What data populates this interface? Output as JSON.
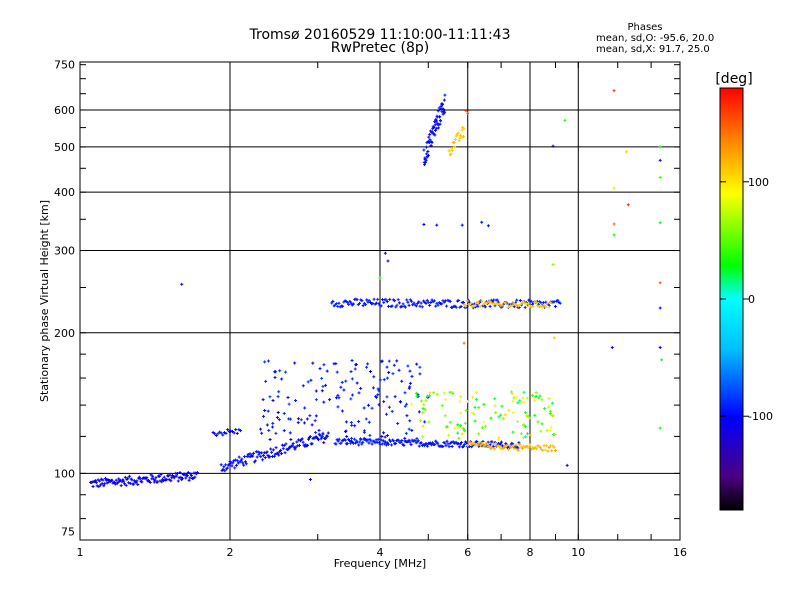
{
  "chart_data": {
    "type": "scatter",
    "title": "Tromsø 20160529 11:10:00-11:11:43",
    "subtitle": "RwPretec (8p)",
    "xlabel": "Frequency [MHz]",
    "ylabel": "Stationary phase Virtual Height [km]",
    "x_scale": "log",
    "y_scale": "log",
    "xlim": [
      1,
      16
    ],
    "ylim": [
      72,
      760
    ],
    "x_ticks": [
      1,
      2,
      4,
      6,
      8,
      10,
      16
    ],
    "x_tick_labels": [
      "1",
      "2",
      "4",
      "6",
      "8",
      "10",
      "16"
    ],
    "y_ticks": [
      75,
      100,
      200,
      300,
      400,
      500,
      600,
      750
    ],
    "y_tick_labels": [
      "75",
      "100",
      "200",
      "300",
      "400",
      "500",
      "600",
      "750"
    ],
    "grid": true,
    "colorbar": {
      "label": "[deg]",
      "range": [
        -180,
        180
      ],
      "ticks": [
        100,
        0,
        -100
      ],
      "tick_labels": [
        "100",
        "0",
        "-100"
      ]
    },
    "legend_title": "Phases",
    "legend_lines": [
      "mean, sd,O: -95.6, 20.0",
      "mean, sd,X: 91.7, 25.0"
    ],
    "traces": [
      {
        "name": "",
        "f_start": 1.05,
        "f_end": 1.72,
        "h_start": 95,
        "h_end": 99,
        "phase": -105,
        "spread": 2.2,
        "count": 130,
        "jitter": 12
      },
      {
        "name": "",
        "f_start": 1.92,
        "f_end": 3.15,
        "h_start": 103,
        "h_end": 120,
        "phase": -100,
        "spread": 2.5,
        "count": 120,
        "jitter": 18
      },
      {
        "name": "",
        "f_start": 1.85,
        "f_end": 2.1,
        "h_start": 122,
        "h_end": 123,
        "phase": -100,
        "spread": 1.5,
        "count": 18,
        "jitter": 15
      },
      {
        "name": "",
        "f_start": 3.25,
        "f_end": 7.6,
        "h_start": 117,
        "h_end": 115,
        "phase": -95,
        "spread": 1.5,
        "count": 180,
        "jitter": 18
      },
      {
        "name": "",
        "f_start": 6.0,
        "f_end": 9.0,
        "h_start": 115,
        "h_end": 113,
        "phase": 115,
        "spread": 1.5,
        "count": 70,
        "jitter": 20
      },
      {
        "name": "",
        "f_start": 3.2,
        "f_end": 9.2,
        "h_start": 232,
        "h_end": 230,
        "phase": -95,
        "spread": 2.0,
        "count": 190,
        "jitter": 22
      },
      {
        "name": "",
        "f_start": 5.9,
        "f_end": 8.8,
        "h_start": 231,
        "h_end": 229,
        "phase": 110,
        "spread": 1.5,
        "count": 55,
        "jitter": 25
      },
      {
        "name": "",
        "f_start": 4.9,
        "f_end": 5.4,
        "h_start": 470,
        "h_end": 620,
        "phase": -100,
        "spread": 5.0,
        "count": 70,
        "jitter": 20
      },
      {
        "name": "",
        "f_start": 5.5,
        "f_end": 5.9,
        "h_start": 490,
        "h_end": 540,
        "phase": 110,
        "spread": 3.0,
        "count": 22,
        "jitter": 20
      }
    ],
    "clouds": [
      {
        "name": "",
        "f_min": 2.3,
        "f_max": 5.0,
        "h_min": 118,
        "h_max": 175,
        "phase": -95,
        "count": 170,
        "jitter": 25
      },
      {
        "name": "",
        "f_min": 4.6,
        "f_max": 9.0,
        "h_min": 118,
        "h_max": 150,
        "phase": 60,
        "count": 120,
        "jitter": 90
      }
    ],
    "points": [
      {
        "f": 1.6,
        "h": 254,
        "phase": -100
      },
      {
        "f": 2.9,
        "h": 97,
        "phase": -100
      },
      {
        "f": 4.0,
        "h": 262,
        "phase": 30
      },
      {
        "f": 4.15,
        "h": 285,
        "phase": -100
      },
      {
        "f": 4.1,
        "h": 296,
        "phase": -100
      },
      {
        "f": 4.9,
        "h": 341,
        "phase": -100
      },
      {
        "f": 5.2,
        "h": 340,
        "phase": -100
      },
      {
        "f": 5.85,
        "h": 340,
        "phase": -100
      },
      {
        "f": 6.4,
        "h": 345,
        "phase": -100
      },
      {
        "f": 6.6,
        "h": 339,
        "phase": -100
      },
      {
        "f": 6.0,
        "h": 590,
        "phase": 150
      },
      {
        "f": 5.95,
        "h": 598,
        "phase": 165
      },
      {
        "f": 9.4,
        "h": 570,
        "phase": 35
      },
      {
        "f": 8.9,
        "h": 502,
        "phase": -130
      },
      {
        "f": 8.9,
        "h": 280,
        "phase": 60
      },
      {
        "f": 8.95,
        "h": 195,
        "phase": 110
      },
      {
        "f": 5.9,
        "h": 190,
        "phase": 140
      },
      {
        "f": 9.5,
        "h": 104,
        "phase": -100
      },
      {
        "f": 11.8,
        "h": 660,
        "phase": 160
      },
      {
        "f": 12.5,
        "h": 488,
        "phase": 110
      },
      {
        "f": 11.8,
        "h": 408,
        "phase": 100
      },
      {
        "f": 12.6,
        "h": 376,
        "phase": 165
      },
      {
        "f": 11.8,
        "h": 342,
        "phase": 145
      },
      {
        "f": 11.8,
        "h": 324,
        "phase": 30
      },
      {
        "f": 11.7,
        "h": 186,
        "phase": -100
      },
      {
        "f": 14.6,
        "h": 500,
        "phase": 30
      },
      {
        "f": 14.6,
        "h": 468,
        "phase": -100
      },
      {
        "f": 14.6,
        "h": 430,
        "phase": 40
      },
      {
        "f": 14.6,
        "h": 344,
        "phase": 30
      },
      {
        "f": 14.6,
        "h": 256,
        "phase": 150
      },
      {
        "f": 14.6,
        "h": 226,
        "phase": -100
      },
      {
        "f": 14.6,
        "h": 186,
        "phase": -100
      },
      {
        "f": 14.7,
        "h": 175,
        "phase": 30
      },
      {
        "f": 14.6,
        "h": 125,
        "phase": 30
      }
    ]
  }
}
